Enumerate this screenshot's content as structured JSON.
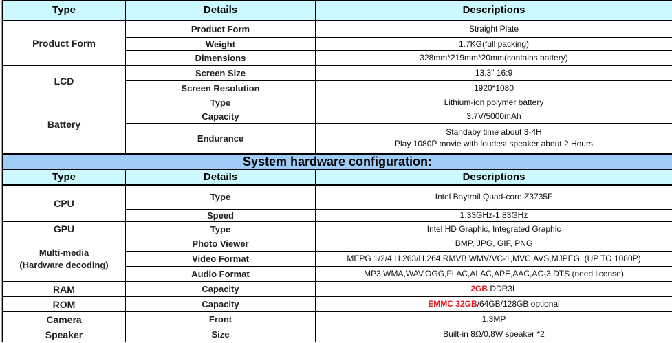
{
  "headers": {
    "type": "Type",
    "details": "Details",
    "descriptions": "Descriptions"
  },
  "section1": [
    {
      "type": "Product Form",
      "rows": [
        {
          "detail": "Product Form",
          "desc": [
            {
              "text": "Straight Plate"
            }
          ]
        },
        {
          "detail": "Weight",
          "desc": [
            {
              "text": "1.7KG(full packing)"
            }
          ]
        },
        {
          "detail": "Dimensions",
          "desc": [
            {
              "text": "328mm*219mm*20mm(contains battery)"
            }
          ]
        }
      ]
    },
    {
      "type": "LCD",
      "rows": [
        {
          "detail": "Screen Size",
          "desc": [
            {
              "text": "13.3\"   16:9"
            }
          ]
        },
        {
          "detail": "Screen Resolution",
          "desc": [
            {
              "text": "1920*1080"
            }
          ]
        }
      ]
    },
    {
      "type": "Battery",
      "rows": [
        {
          "detail": "Type",
          "desc": [
            {
              "text": "Lithium-ion polymer battery"
            }
          ]
        },
        {
          "detail": "Capacity",
          "desc": [
            {
              "text": "3.7V/5000mAh"
            }
          ]
        },
        {
          "detail": "Endurance",
          "desc": [
            {
              "text": "Standaby time about 3-4H"
            },
            {
              "text": "Play 1080P movie with loudest speaker about 2 Hours",
              "newline": true
            }
          ]
        }
      ]
    }
  ],
  "banner": "System hardware configuration:",
  "section2": [
    {
      "type": "CPU",
      "rows": [
        {
          "detail": "Type",
          "desc": [
            {
              "text": "Intel Baytrail Quad-core,Z3735F"
            }
          ]
        },
        {
          "detail": "Speed",
          "desc": [
            {
              "text": "1.33GHz-1.83GHz"
            }
          ]
        }
      ]
    },
    {
      "type": "GPU",
      "rows": [
        {
          "detail": "Type",
          "desc": [
            {
              "text": "Intel HD Graphic, Integrated Graphic"
            }
          ]
        }
      ]
    },
    {
      "type": "Multi-media",
      "type2": "(Hardware decoding)",
      "rows": [
        {
          "detail": "Photo Viewer",
          "desc": [
            {
              "text": "BMP, JPG, GIF, PNG"
            }
          ]
        },
        {
          "detail": "Video Format",
          "desc": [
            {
              "text": "MEPG 1/2/4,H.263/H.264,RMVB,WMV/VC-1,MVC,AVS,MJPEG. (UP TO 1080P)"
            }
          ]
        },
        {
          "detail": "Audio Format",
          "desc": [
            {
              "text": "MP3,WMA,WAV,OGG,FLAC,ALAC,APE,AAC,AC-3,DTS (need license)"
            }
          ]
        }
      ]
    },
    {
      "type": "RAM",
      "rows": [
        {
          "detail": "Capacity",
          "desc": [
            {
              "text": "2GB",
              "highlight": true
            },
            {
              "text": " DDR3L"
            }
          ]
        }
      ]
    },
    {
      "type": "ROM",
      "rows": [
        {
          "detail": "Capacity",
          "desc": [
            {
              "text": "EMMC 32GB",
              "highlight": true
            },
            {
              "text": "/64GB/128GB optional"
            }
          ]
        }
      ]
    },
    {
      "type": "Camera",
      "rows": [
        {
          "detail": "Front",
          "desc": [
            {
              "text": "1.3MP"
            }
          ]
        }
      ]
    },
    {
      "type": "Speaker",
      "rows": [
        {
          "detail": "Size",
          "desc": [
            {
              "text": "Built-in 8Ω/0.8W speaker *2"
            }
          ]
        }
      ]
    }
  ],
  "colors": {
    "header_bg": "#ccf9ff",
    "banner_bg": "#9fcdf7",
    "highlight": "#e8141c"
  }
}
